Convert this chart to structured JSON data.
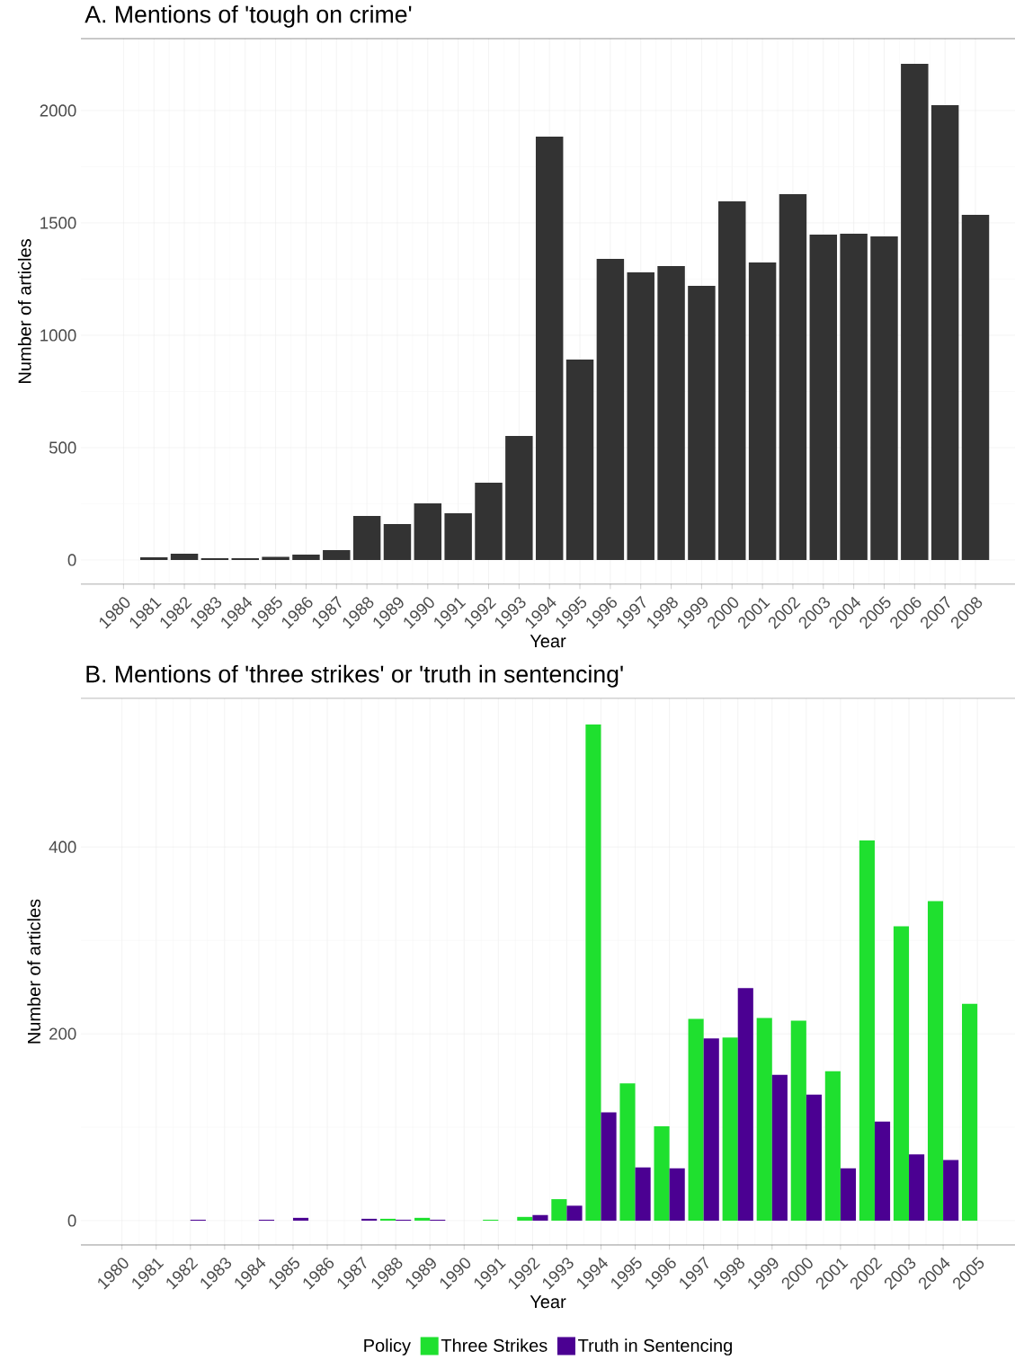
{
  "chart_data": [
    {
      "type": "bar",
      "title": "A. Mentions of 'tough on crime'",
      "xlabel": "Year",
      "ylabel": "Number of articles",
      "categories": [
        "1980",
        "1981",
        "1982",
        "1983",
        "1984",
        "1985",
        "1986",
        "1987",
        "1988",
        "1989",
        "1990",
        "1991",
        "1992",
        "1993",
        "1994",
        "1995",
        "1996",
        "1997",
        "1998",
        "1999",
        "2000",
        "2001",
        "2002",
        "2003",
        "2004",
        "2005",
        "2006",
        "2007",
        "2008"
      ],
      "values": [
        null,
        12,
        28,
        8,
        8,
        14,
        24,
        44,
        196,
        160,
        252,
        208,
        344,
        552,
        1884,
        892,
        1340,
        1280,
        1308,
        1220,
        1596,
        1324,
        1628,
        1448,
        1452,
        1440,
        2208,
        2024,
        1536
      ],
      "color": "#333333",
      "ylim": [
        -108,
        2320
      ],
      "yticks": [
        0,
        500,
        1000,
        1500,
        2000
      ],
      "grid": true
    },
    {
      "type": "bar",
      "title": "B. Mentions of 'three strikes' or 'truth in sentencing'",
      "xlabel": "Year",
      "ylabel": "Number of articles",
      "categories": [
        "1980",
        "1981",
        "1982",
        "1983",
        "1984",
        "1985",
        "1986",
        "1987",
        "1988",
        "1989",
        "1990",
        "1991",
        "1992",
        "1993",
        "1994",
        "1995",
        "1996",
        "1997",
        "1998",
        "1999",
        "2000",
        "2001",
        "2002",
        "2003",
        "2004",
        "2005"
      ],
      "series": [
        {
          "name": "Three Strikes",
          "color": "#1fe02f",
          "values": [
            null,
            null,
            null,
            null,
            null,
            null,
            null,
            null,
            2,
            3,
            null,
            1,
            4,
            23,
            531,
            147,
            101,
            216,
            196,
            217,
            214,
            160,
            407,
            315,
            342,
            232
          ]
        },
        {
          "name": "Truth in Sentencing",
          "color": "#4b0092",
          "values": [
            null,
            null,
            1,
            null,
            1,
            3,
            null,
            2,
            1,
            1,
            null,
            null,
            6,
            16,
            116,
            57,
            56,
            195,
            249,
            156,
            135,
            56,
            106,
            71,
            65,
            null
          ]
        }
      ],
      "ylim": [
        -26,
        559
      ],
      "yticks": [
        0,
        200,
        400
      ],
      "grid": true,
      "legend": "bottom",
      "legend_title": "Policy"
    }
  ]
}
